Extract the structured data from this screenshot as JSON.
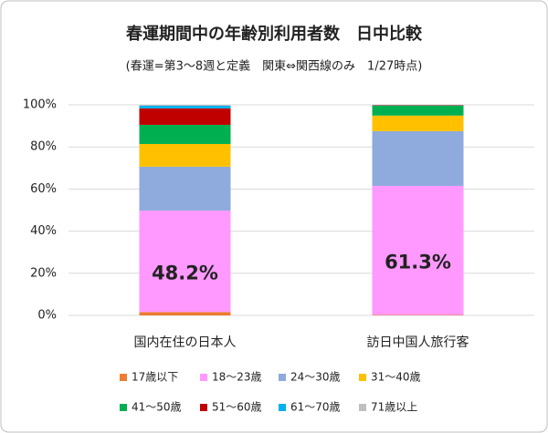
{
  "chart_data": {
    "type": "stacked_bar",
    "title": "春運期間中の年齢別利用者数　日中比較",
    "subtitle": "(春運=第3～8週と定義　関東⇔関西線のみ　1/27時点)",
    "categories": [
      "国内在住の日本人",
      "訪日中国人旅行客"
    ],
    "series": [
      {
        "name": "17歳以下",
        "color": "#ed7d31",
        "values": [
          1.6,
          0.2
        ]
      },
      {
        "name": "18～23歳",
        "color": "#ff99ff",
        "values": [
          48.2,
          61.3
        ],
        "value_labels": [
          "48.2%",
          "61.3%"
        ]
      },
      {
        "name": "24～30歳",
        "color": "#8faadc",
        "values": [
          20.8,
          26.0
        ]
      },
      {
        "name": "31～40歳",
        "color": "#ffc000",
        "values": [
          10.8,
          7.4
        ]
      },
      {
        "name": "41～50歳",
        "color": "#00b050",
        "values": [
          9.1,
          4.7
        ]
      },
      {
        "name": "51～60歳",
        "color": "#c00000",
        "values": [
          7.8,
          0.2
        ]
      },
      {
        "name": "61～70歳",
        "color": "#00b0f0",
        "values": [
          1.3,
          0.1
        ]
      },
      {
        "name": "71歳以上",
        "color": "#bfbfbf",
        "values": [
          0.4,
          0.1
        ]
      }
    ],
    "ylim": [
      0,
      100
    ],
    "yticks": [
      {
        "value": 0,
        "label": "0%"
      },
      {
        "value": 20,
        "label": "20%"
      },
      {
        "value": 40,
        "label": "40%"
      },
      {
        "value": 60,
        "label": "60%"
      },
      {
        "value": 80,
        "label": "80%"
      },
      {
        "value": 100,
        "label": "100%"
      }
    ],
    "grid": true,
    "legend": "bottom"
  }
}
